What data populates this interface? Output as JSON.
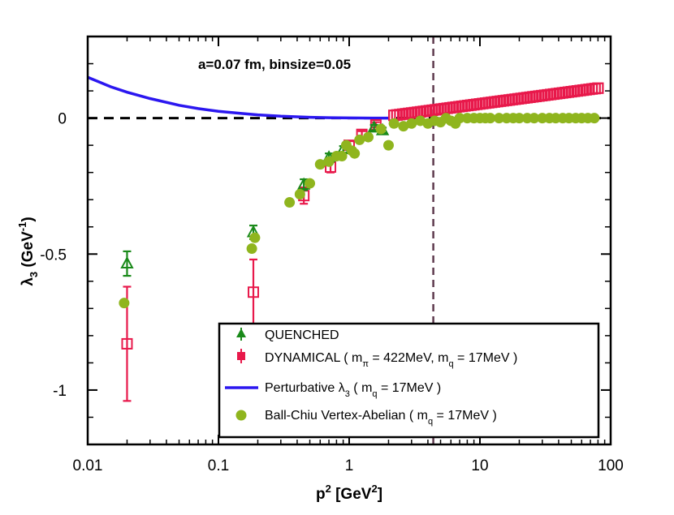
{
  "chart_data": {
    "type": "scatter",
    "annotation": "a=0.07 fm, binsize=0.05",
    "xlabel": "p² [GeV²]",
    "ylabel": "λ₃ (GeV⁻¹)",
    "xscale": "log",
    "xlim": [
      0.01,
      100
    ],
    "ylim": [
      -1.2,
      0.3
    ],
    "x_ticks": [
      {
        "value": 0.01,
        "label": "0.01"
      },
      {
        "value": 0.1,
        "label": "0.1"
      },
      {
        "value": 1,
        "label": "1"
      },
      {
        "value": 10,
        "label": "10"
      },
      {
        "value": 100,
        "label": "100"
      }
    ],
    "y_ticks": [
      {
        "value": 0,
        "label": "0"
      },
      {
        "value": -0.5,
        "label": "-0.5"
      },
      {
        "value": -1,
        "label": "-1"
      }
    ],
    "reference_lines": {
      "horizontal_y": 0,
      "vertical_x": 4.4
    },
    "legend_position": "bottom-right",
    "series": [
      {
        "name": "QUENCHED",
        "legend_label": "QUENCHED",
        "color": "#1a8a1a",
        "marker": "triangle-open",
        "points": [
          {
            "x": 0.02,
            "y": -0.535,
            "err": 0.045
          },
          {
            "x": 0.185,
            "y": -0.42,
            "err": 0.025
          },
          {
            "x": 0.45,
            "y": -0.245,
            "err": 0.02
          },
          {
            "x": 0.7,
            "y": -0.145,
            "err": 0.015
          },
          {
            "x": 0.9,
            "y": -0.115,
            "err": 0.012
          },
          {
            "x": 1.55,
            "y": -0.035,
            "err": 0.01
          },
          {
            "x": 1.8,
            "y": -0.045,
            "err": 0.01
          }
        ]
      },
      {
        "name": "DYNAMICAL",
        "legend_label": "DYNAMICAL ( m_π = 422MeV, m_q = 17MeV )",
        "color": "#e8194b",
        "marker": "square-open",
        "points": [
          {
            "x": 0.02,
            "y": -0.83,
            "err": 0.21
          },
          {
            "x": 0.185,
            "y": -0.64,
            "err": 0.12
          },
          {
            "x": 0.45,
            "y": -0.285,
            "err": 0.03
          },
          {
            "x": 0.72,
            "y": -0.18,
            "err": 0.02
          },
          {
            "x": 1.0,
            "y": -0.1,
            "err": 0.015
          },
          {
            "x": 1.25,
            "y": -0.06,
            "err": 0.012
          },
          {
            "x": 1.6,
            "y": -0.025,
            "err": 0.01
          }
        ]
      },
      {
        "name": "Ball-Chiu Vertex-Abelian",
        "legend_label": "Ball-Chiu Vertex-Abelian ( m_q = 17MeV )",
        "color": "#8fb51e",
        "marker": "circle-filled",
        "points": [
          {
            "x": 0.019,
            "y": -0.68
          },
          {
            "x": 0.18,
            "y": -0.48
          },
          {
            "x": 0.19,
            "y": -0.44
          },
          {
            "x": 0.35,
            "y": -0.31
          },
          {
            "x": 0.42,
            "y": -0.28
          },
          {
            "x": 0.5,
            "y": -0.24
          },
          {
            "x": 0.6,
            "y": -0.17
          },
          {
            "x": 0.7,
            "y": -0.16
          },
          {
            "x": 0.8,
            "y": -0.14
          },
          {
            "x": 0.88,
            "y": -0.14
          },
          {
            "x": 0.95,
            "y": -0.1
          },
          {
            "x": 1.05,
            "y": -0.12
          },
          {
            "x": 1.1,
            "y": -0.13
          },
          {
            "x": 1.2,
            "y": -0.08
          },
          {
            "x": 1.4,
            "y": -0.07
          },
          {
            "x": 1.75,
            "y": -0.04
          },
          {
            "x": 2.0,
            "y": -0.1
          },
          {
            "x": 2.2,
            "y": -0.02
          },
          {
            "x": 2.6,
            "y": -0.03
          },
          {
            "x": 3.0,
            "y": -0.02
          },
          {
            "x": 3.5,
            "y": -0.01
          },
          {
            "x": 4.0,
            "y": -0.02
          },
          {
            "x": 4.5,
            "y": -0.01
          },
          {
            "x": 5.0,
            "y": -0.015
          },
          {
            "x": 5.5,
            "y": 0.0
          },
          {
            "x": 6.0,
            "y": -0.01
          },
          {
            "x": 6.5,
            "y": -0.02
          },
          {
            "x": 7.0,
            "y": 0.0
          },
          {
            "x": 8.0,
            "y": 0.0
          },
          {
            "x": 9.0,
            "y": 0.0
          },
          {
            "x": 10.0,
            "y": 0.0
          },
          {
            "x": 11.0,
            "y": 0.0
          },
          {
            "x": 12.0,
            "y": 0.0
          },
          {
            "x": 14.0,
            "y": 0.0
          },
          {
            "x": 16.0,
            "y": 0.0
          },
          {
            "x": 18.0,
            "y": 0.0
          },
          {
            "x": 20.0,
            "y": 0.0
          },
          {
            "x": 23.0,
            "y": 0.0
          },
          {
            "x": 26.0,
            "y": 0.0
          },
          {
            "x": 30.0,
            "y": 0.0
          },
          {
            "x": 34.0,
            "y": 0.0
          },
          {
            "x": 38.0,
            "y": 0.0
          },
          {
            "x": 43.0,
            "y": 0.0
          },
          {
            "x": 48.0,
            "y": 0.0
          },
          {
            "x": 54.0,
            "y": 0.0
          },
          {
            "x": 60.0,
            "y": 0.0
          },
          {
            "x": 67.0,
            "y": 0.0
          },
          {
            "x": 75.0,
            "y": 0.0
          }
        ]
      }
    ],
    "dynamical_dense_band": {
      "x_start": 2.2,
      "x_end": 80,
      "y_start": 0.01,
      "y_end": 0.11
    },
    "perturbative": {
      "name": "Perturbative λ₃",
      "legend_label": "Perturbative λ₃ ( m_q = 17MeV )",
      "color": "#2b17f0",
      "curve": [
        {
          "x": 0.01,
          "y": 0.15
        },
        {
          "x": 0.015,
          "y": 0.115
        },
        {
          "x": 0.02,
          "y": 0.095
        },
        {
          "x": 0.03,
          "y": 0.072
        },
        {
          "x": 0.05,
          "y": 0.047
        },
        {
          "x": 0.07,
          "y": 0.035
        },
        {
          "x": 0.1,
          "y": 0.025
        },
        {
          "x": 0.15,
          "y": 0.017
        },
        {
          "x": 0.2,
          "y": 0.012
        },
        {
          "x": 0.3,
          "y": 0.007
        },
        {
          "x": 0.5,
          "y": 0.003
        },
        {
          "x": 0.7,
          "y": 0.0015
        },
        {
          "x": 1.0,
          "y": 0.0005
        },
        {
          "x": 1.5,
          "y": 0.0
        },
        {
          "x": 2.0,
          "y": 0.0
        }
      ]
    }
  }
}
